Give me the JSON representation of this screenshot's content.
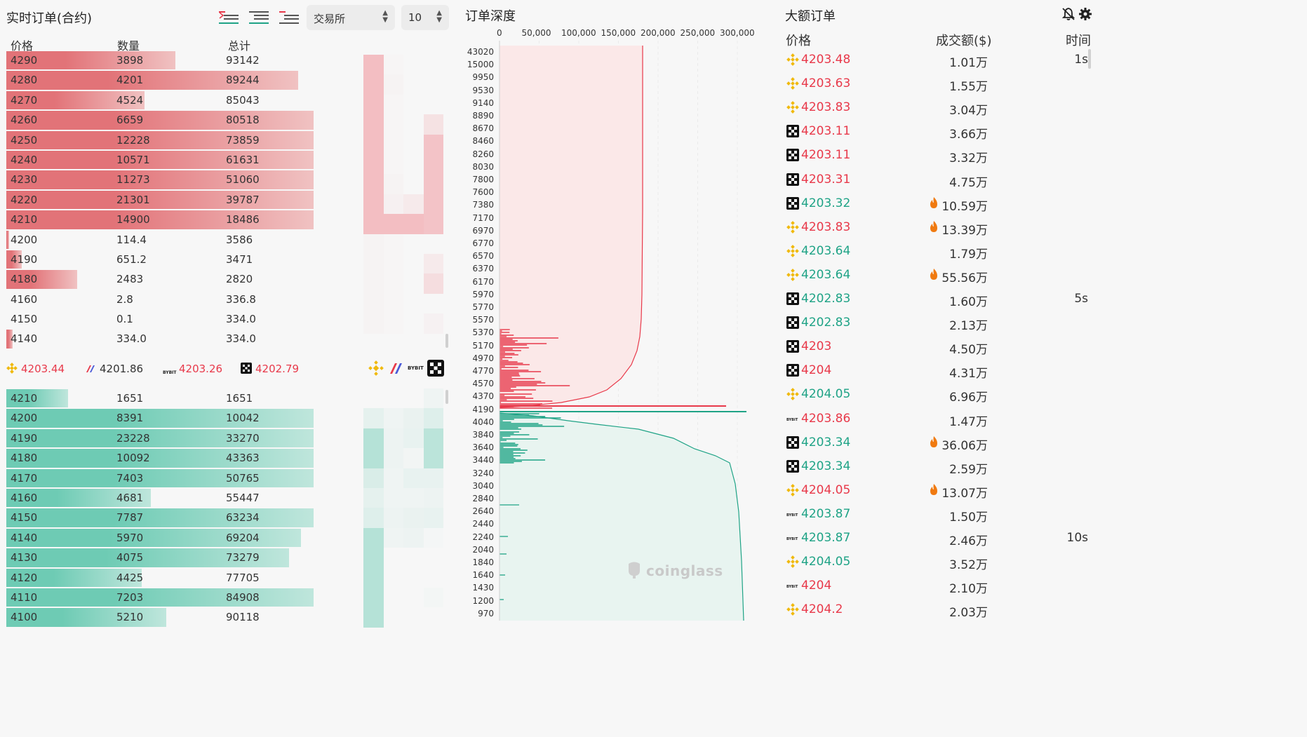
{
  "orderbook": {
    "title": "实时订单(合约)",
    "exchange_select": "交易所",
    "depth_select": "10",
    "headers": {
      "price": "价格",
      "qty": "数量",
      "total": "总计"
    },
    "asks": [
      {
        "price": "4290",
        "qty": "3898",
        "total": "93142",
        "fill": 0.55
      },
      {
        "price": "4280",
        "qty": "4201",
        "total": "89244",
        "fill": 0.95
      },
      {
        "price": "4270",
        "qty": "4524",
        "total": "85043",
        "fill": 0.45
      },
      {
        "price": "4260",
        "qty": "6659",
        "total": "80518",
        "fill": 1.0
      },
      {
        "price": "4250",
        "qty": "12228",
        "total": "73859",
        "fill": 1.0
      },
      {
        "price": "4240",
        "qty": "10571",
        "total": "61631",
        "fill": 1.0
      },
      {
        "price": "4230",
        "qty": "11273",
        "total": "51060",
        "fill": 1.0
      },
      {
        "price": "4220",
        "qty": "21301",
        "total": "39787",
        "fill": 1.0
      },
      {
        "price": "4210",
        "qty": "14900",
        "total": "18486",
        "fill": 1.0
      },
      {
        "price": "4200",
        "qty": "114.4",
        "total": "3586",
        "fill": 0.01
      },
      {
        "price": "4190",
        "qty": "651.2",
        "total": "3471",
        "fill": 0.05
      },
      {
        "price": "4180",
        "qty": "2483",
        "total": "2820",
        "fill": 0.23
      },
      {
        "price": "4160",
        "qty": "2.8",
        "total": "336.8",
        "fill": 0.0
      },
      {
        "price": "4150",
        "qty": "0.1",
        "total": "334.0",
        "fill": 0.0
      },
      {
        "price": "4140",
        "qty": "334.0",
        "total": "334.0",
        "fill": 0.02
      }
    ],
    "bids": [
      {
        "price": "4210",
        "qty": "1651",
        "total": "1651",
        "fill": 0.2
      },
      {
        "price": "4200",
        "qty": "8391",
        "total": "10042",
        "fill": 1.0
      },
      {
        "price": "4190",
        "qty": "23228",
        "total": "33270",
        "fill": 1.0
      },
      {
        "price": "4180",
        "qty": "10092",
        "total": "43363",
        "fill": 1.0
      },
      {
        "price": "4170",
        "qty": "7403",
        "total": "50765",
        "fill": 1.0
      },
      {
        "price": "4160",
        "qty": "4681",
        "total": "55447",
        "fill": 0.47
      },
      {
        "price": "4150",
        "qty": "7787",
        "total": "63234",
        "fill": 1.0
      },
      {
        "price": "4140",
        "qty": "5970",
        "total": "69204",
        "fill": 0.96
      },
      {
        "price": "4130",
        "qty": "4075",
        "total": "73279",
        "fill": 0.92
      },
      {
        "price": "4120",
        "qty": "4425",
        "total": "77705",
        "fill": 0.44
      },
      {
        "price": "4110",
        "qty": "7203",
        "total": "84908",
        "fill": 1.0
      },
      {
        "price": "4100",
        "qty": "5210",
        "total": "90118",
        "fill": 0.52
      }
    ],
    "ticker": [
      {
        "icon": "binance-icon",
        "price": "4203.44",
        "color": "#e8394a"
      },
      {
        "icon": "bitmex-icon",
        "price": "4201.86",
        "color": "#333333"
      },
      {
        "icon": "bybit-icon",
        "price": "4203.26",
        "color": "#e8394a"
      },
      {
        "icon": "okx-icon",
        "price": "4202.79",
        "color": "#e8394a"
      }
    ]
  },
  "depth": {
    "title": "订单深度",
    "x_ticks": [
      "0",
      "50,000",
      "100,000",
      "150,000",
      "200,000",
      "250,000",
      "300,000"
    ],
    "y_ticks": [
      "43020",
      "15000",
      "9950",
      "9530",
      "9140",
      "8890",
      "8670",
      "8460",
      "8260",
      "8030",
      "7800",
      "7600",
      "7380",
      "7170",
      "6970",
      "6770",
      "6570",
      "6370",
      "6170",
      "5970",
      "5770",
      "5570",
      "5370",
      "5170",
      "4970",
      "4770",
      "4570",
      "4370",
      "4190",
      "4040",
      "3840",
      "3640",
      "3440",
      "3240",
      "3040",
      "2840",
      "2640",
      "2440",
      "2240",
      "2040",
      "1840",
      "1640",
      "1430",
      "1200",
      "970"
    ],
    "watermark": "coinglass",
    "colors": {
      "ask": "#e8394a",
      "bid": "#1fa386"
    }
  },
  "big_orders": {
    "title": "大额订单",
    "headers": {
      "price": "价格",
      "amount": "成交额($)",
      "time": "时间"
    },
    "rows": [
      {
        "ex": "binance",
        "price": "4203.48",
        "side": "red",
        "amount": "1.01万",
        "fire": false,
        "time": "1s"
      },
      {
        "ex": "binance",
        "price": "4203.63",
        "side": "red",
        "amount": "1.55万",
        "fire": false,
        "time": ""
      },
      {
        "ex": "binance",
        "price": "4203.83",
        "side": "red",
        "amount": "3.04万",
        "fire": false,
        "time": ""
      },
      {
        "ex": "okx",
        "price": "4203.11",
        "side": "red",
        "amount": "3.66万",
        "fire": false,
        "time": ""
      },
      {
        "ex": "okx",
        "price": "4203.11",
        "side": "red",
        "amount": "3.32万",
        "fire": false,
        "time": ""
      },
      {
        "ex": "okx",
        "price": "4203.31",
        "side": "red",
        "amount": "4.75万",
        "fire": false,
        "time": ""
      },
      {
        "ex": "okx",
        "price": "4203.32",
        "side": "green",
        "amount": "10.59万",
        "fire": true,
        "time": ""
      },
      {
        "ex": "binance",
        "price": "4203.83",
        "side": "red",
        "amount": "13.39万",
        "fire": true,
        "time": ""
      },
      {
        "ex": "binance",
        "price": "4203.64",
        "side": "green",
        "amount": "1.79万",
        "fire": false,
        "time": ""
      },
      {
        "ex": "binance",
        "price": "4203.64",
        "side": "green",
        "amount": "55.56万",
        "fire": true,
        "time": ""
      },
      {
        "ex": "okx",
        "price": "4202.83",
        "side": "green",
        "amount": "1.60万",
        "fire": false,
        "time": "5s"
      },
      {
        "ex": "okx",
        "price": "4202.83",
        "side": "green",
        "amount": "2.13万",
        "fire": false,
        "time": ""
      },
      {
        "ex": "okx",
        "price": "4203",
        "side": "red",
        "amount": "4.50万",
        "fire": false,
        "time": ""
      },
      {
        "ex": "okx",
        "price": "4204",
        "side": "red",
        "amount": "4.31万",
        "fire": false,
        "time": ""
      },
      {
        "ex": "binance",
        "price": "4204.05",
        "side": "green",
        "amount": "6.96万",
        "fire": false,
        "time": ""
      },
      {
        "ex": "bybit",
        "price": "4203.86",
        "side": "red",
        "amount": "1.47万",
        "fire": false,
        "time": ""
      },
      {
        "ex": "okx",
        "price": "4203.34",
        "side": "green",
        "amount": "36.06万",
        "fire": true,
        "time": ""
      },
      {
        "ex": "okx",
        "price": "4203.34",
        "side": "green",
        "amount": "2.59万",
        "fire": false,
        "time": ""
      },
      {
        "ex": "binance",
        "price": "4204.05",
        "side": "red",
        "amount": "13.07万",
        "fire": true,
        "time": ""
      },
      {
        "ex": "bybit",
        "price": "4203.87",
        "side": "green",
        "amount": "1.50万",
        "fire": false,
        "time": ""
      },
      {
        "ex": "bybit",
        "price": "4203.87",
        "side": "green",
        "amount": "2.46万",
        "fire": false,
        "time": "10s"
      },
      {
        "ex": "binance",
        "price": "4204.05",
        "side": "green",
        "amount": "3.52万",
        "fire": false,
        "time": ""
      },
      {
        "ex": "bybit",
        "price": "4204",
        "side": "red",
        "amount": "2.10万",
        "fire": false,
        "time": ""
      },
      {
        "ex": "binance",
        "price": "4204.2",
        "side": "red",
        "amount": "2.03万",
        "fire": false,
        "time": ""
      }
    ]
  }
}
